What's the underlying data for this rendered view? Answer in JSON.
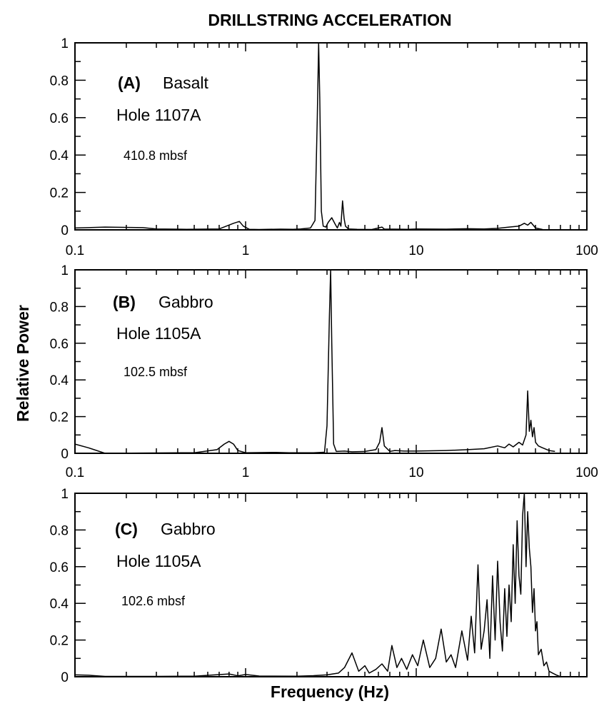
{
  "chart_data": {
    "title": "DRILLSTRING ACCELERATION",
    "ylabel": "Relative Power",
    "xlabel": "Frequency (Hz)",
    "panels": [
      {
        "type": "line",
        "tag": "(A)",
        "rock": "Basalt",
        "hole": "Hole 1107A",
        "depth": "410.8 mbsf",
        "x_scale": "log",
        "xlim": [
          0.1,
          100
        ],
        "ylim": [
          0,
          1
        ],
        "x_tick_labels": [
          "0.1",
          "1",
          "10",
          "100"
        ],
        "y_tick_labels": [
          "0",
          "0.2",
          "0.4",
          "0.6",
          "0.8",
          "1"
        ],
        "spectrum": {
          "x": [
            0.1,
            0.15,
            0.25,
            0.3,
            0.45,
            0.7,
            0.85,
            0.92,
            0.97,
            1.05,
            1.2,
            1.6,
            1.9,
            2.1,
            2.4,
            2.55,
            2.63,
            2.68,
            2.72,
            2.78,
            2.85,
            2.95,
            3.05,
            3.2,
            3.35,
            3.45,
            3.55,
            3.62,
            3.7,
            3.78,
            3.85,
            4.0,
            4.5,
            5.5,
            6.3,
            6.5,
            7.5,
            9,
            10,
            15,
            20,
            25,
            30,
            35,
            40,
            43,
            45,
            47,
            50,
            55
          ],
          "y": [
            0.01,
            0.015,
            0.012,
            0.005,
            0.003,
            0.005,
            0.035,
            0.045,
            0.02,
            0.003,
            0.002,
            0.004,
            0.003,
            0.005,
            0.01,
            0.05,
            0.6,
            1.0,
            0.7,
            0.1,
            0.02,
            0.015,
            0.04,
            0.065,
            0.03,
            0.01,
            0.04,
            0.02,
            0.155,
            0.06,
            0.02,
            0.005,
            0.003,
            0.002,
            0.015,
            0.004,
            0.004,
            0.003,
            0.005,
            0.004,
            0.006,
            0.005,
            0.008,
            0.015,
            0.02,
            0.035,
            0.025,
            0.04,
            0.01,
            0.002
          ]
        }
      },
      {
        "type": "line",
        "tag": "(B)",
        "rock": "Gabbro",
        "hole": "Hole 1105A",
        "depth": "102.5 mbsf",
        "x_scale": "log",
        "xlim": [
          0.1,
          100
        ],
        "ylim": [
          0,
          1
        ],
        "x_tick_labels": [
          "0.1",
          "1",
          "10",
          "100"
        ],
        "y_tick_labels": [
          "0",
          "0.2",
          "0.4",
          "0.6",
          "0.8",
          "1"
        ],
        "spectrum": {
          "x": [
            0.1,
            0.12,
            0.15,
            0.3,
            0.5,
            0.68,
            0.75,
            0.8,
            0.85,
            0.9,
            1.0,
            1.5,
            1.8,
            2.5,
            2.9,
            3.0,
            3.1,
            3.15,
            3.2,
            3.28,
            3.4,
            3.8,
            4.2,
            5.0,
            5.8,
            6.1,
            6.3,
            6.5,
            7.0,
            7.5,
            8.5,
            10,
            15,
            20,
            25,
            30,
            33,
            35,
            37,
            40,
            42,
            44,
            45,
            46,
            47,
            48,
            49,
            50,
            52,
            55,
            60,
            65
          ],
          "y": [
            0.05,
            0.03,
            0.0,
            0.002,
            0.003,
            0.02,
            0.05,
            0.065,
            0.05,
            0.015,
            0.003,
            0.005,
            0.003,
            0.003,
            0.006,
            0.15,
            0.75,
            1.0,
            0.6,
            0.05,
            0.01,
            0.012,
            0.008,
            0.01,
            0.02,
            0.06,
            0.14,
            0.04,
            0.01,
            0.015,
            0.012,
            0.012,
            0.015,
            0.02,
            0.025,
            0.04,
            0.03,
            0.05,
            0.035,
            0.06,
            0.045,
            0.1,
            0.34,
            0.12,
            0.18,
            0.09,
            0.14,
            0.06,
            0.04,
            0.03,
            0.015,
            0.01
          ]
        }
      },
      {
        "type": "line",
        "tag": "(C)",
        "rock": "Gabbro",
        "hole": "Hole 1105A",
        "depth": "102.6 mbsf",
        "x_scale": "log",
        "xlim": [
          0.1,
          100
        ],
        "ylim": [
          0,
          1
        ],
        "x_tick_labels": [],
        "y_tick_labels": [
          "0",
          "0.2",
          "0.4",
          "0.6",
          "0.8",
          "1"
        ],
        "spectrum": {
          "x": [
            0.1,
            0.12,
            0.15,
            0.3,
            0.5,
            0.8,
            0.9,
            1.0,
            1.2,
            2.0,
            2.5,
            3.0,
            3.5,
            3.8,
            4.2,
            4.6,
            5.0,
            5.3,
            5.8,
            6.3,
            6.8,
            7.2,
            7.7,
            8.2,
            8.8,
            9.5,
            10.2,
            11,
            12,
            13,
            14,
            15,
            16,
            17,
            18.5,
            20,
            21,
            22,
            23,
            24,
            25,
            26,
            27,
            28,
            29,
            30,
            31,
            32,
            33,
            34,
            35,
            36,
            37,
            38,
            39,
            40,
            41,
            42,
            43,
            44,
            45,
            46,
            47,
            48,
            49,
            50,
            51,
            52,
            54,
            56,
            58,
            60,
            63,
            66,
            70
          ],
          "y": [
            0.01,
            0.008,
            0.002,
            0.002,
            0.003,
            0.015,
            0.005,
            0.012,
            0.004,
            0.003,
            0.006,
            0.01,
            0.02,
            0.05,
            0.13,
            0.03,
            0.06,
            0.02,
            0.04,
            0.07,
            0.03,
            0.17,
            0.05,
            0.1,
            0.04,
            0.12,
            0.06,
            0.2,
            0.05,
            0.1,
            0.26,
            0.08,
            0.12,
            0.05,
            0.25,
            0.09,
            0.33,
            0.13,
            0.61,
            0.15,
            0.25,
            0.42,
            0.1,
            0.55,
            0.2,
            0.63,
            0.3,
            0.14,
            0.48,
            0.22,
            0.5,
            0.3,
            0.72,
            0.4,
            0.85,
            0.55,
            0.45,
            0.88,
            1.0,
            0.6,
            0.9,
            0.7,
            0.6,
            0.35,
            0.48,
            0.25,
            0.3,
            0.12,
            0.15,
            0.06,
            0.08,
            0.03,
            0.02,
            0.01,
            0.0
          ]
        }
      }
    ]
  }
}
